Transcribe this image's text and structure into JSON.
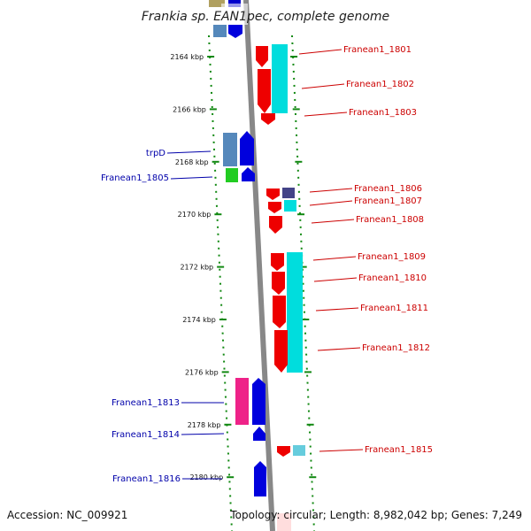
{
  "title": "Frankia sp. EAN1pec, complete genome",
  "footer": {
    "accession": "Accession: NC_009921",
    "topology": "Topology: circular; Length: 8,982,042 bp; Genes: 7,249"
  },
  "colors": {
    "forward_label": "#0000aa",
    "reverse_label": "#cc0000",
    "tick": "#118811",
    "axis": "#888888"
  },
  "ticks": [
    {
      "label": "2164 kbp",
      "kbp": 2164
    },
    {
      "label": "2166 kbp",
      "kbp": 2166
    },
    {
      "label": "2168 kbp",
      "kbp": 2168
    },
    {
      "label": "2170 kbp",
      "kbp": 2170
    },
    {
      "label": "2172 kbp",
      "kbp": 2172
    },
    {
      "label": "2174 kbp",
      "kbp": 2174
    },
    {
      "label": "2176 kbp",
      "kbp": 2176
    },
    {
      "label": "2178 kbp",
      "kbp": 2178
    },
    {
      "label": "2180 kbp",
      "kbp": 2180
    }
  ],
  "genes_left": [
    {
      "label": "trpD"
    },
    {
      "label": "Franean1_1805"
    },
    {
      "label": "Franean1_1813"
    },
    {
      "label": "Franean1_1814"
    },
    {
      "label": "Franean1_1816"
    }
  ],
  "genes_right": [
    {
      "label": "Franean1_1801"
    },
    {
      "label": "Franean1_1802"
    },
    {
      "label": "Franean1_1803"
    },
    {
      "label": "Franean1_1806"
    },
    {
      "label": "Franean1_1807"
    },
    {
      "label": "Franean1_1808"
    },
    {
      "label": "Franean1_1809"
    },
    {
      "label": "Franean1_1810"
    },
    {
      "label": "Franean1_1811"
    },
    {
      "label": "Franean1_1812"
    },
    {
      "label": "Franean1_1815"
    }
  ]
}
